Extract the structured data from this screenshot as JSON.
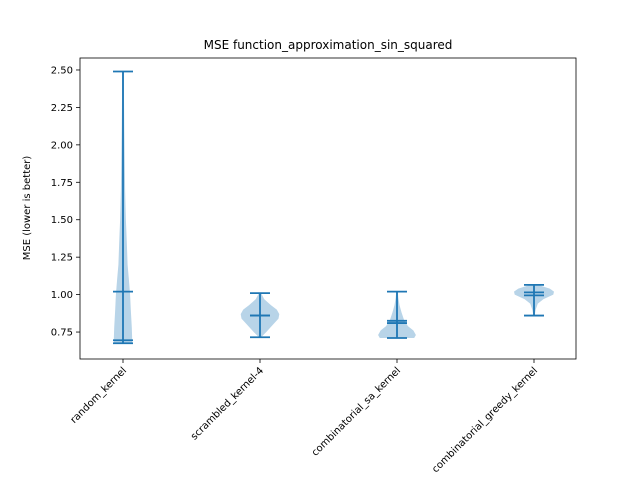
{
  "chart_data": {
    "type": "violin",
    "title": "MSE function_approximation_sin_squared",
    "ylabel": "MSE (lower is better)",
    "xlabel": "",
    "ylim": [
      0.57,
      2.58
    ],
    "yticks": [
      0.75,
      1.0,
      1.25,
      1.5,
      1.75,
      2.0,
      2.25,
      2.5
    ],
    "ytick_labels": [
      "0.75",
      "1.00",
      "1.25",
      "1.50",
      "1.75",
      "2.00",
      "2.25",
      "2.50"
    ],
    "categories": [
      "random_kernel",
      "scrambled_kernel-4",
      "combinatorial_sa_kernel",
      "combinatorial_greedy_kernel"
    ],
    "series": [
      {
        "min": 0.675,
        "max": 2.49,
        "mean": 1.02,
        "median": 0.695,
        "density": [
          [
            0.675,
            0.44
          ],
          [
            0.7,
            0.44
          ],
          [
            0.78,
            0.42
          ],
          [
            0.9,
            0.37
          ],
          [
            1.0,
            0.34
          ],
          [
            1.1,
            0.28
          ],
          [
            1.2,
            0.22
          ],
          [
            1.35,
            0.18
          ],
          [
            1.5,
            0.14
          ],
          [
            1.7,
            0.1
          ],
          [
            1.9,
            0.08
          ],
          [
            2.1,
            0.06
          ],
          [
            2.3,
            0.05
          ],
          [
            2.49,
            0.05
          ]
        ]
      },
      {
        "min": 0.715,
        "max": 1.01,
        "mean": 0.86,
        "median": 0.86,
        "density": [
          [
            0.715,
            0.05
          ],
          [
            0.75,
            0.3
          ],
          [
            0.8,
            0.62
          ],
          [
            0.84,
            0.88
          ],
          [
            0.87,
            0.92
          ],
          [
            0.9,
            0.8
          ],
          [
            0.93,
            0.52
          ],
          [
            0.97,
            0.2
          ],
          [
            1.01,
            0.05
          ]
        ]
      },
      {
        "min": 0.71,
        "max": 1.02,
        "mean": 0.825,
        "median": 0.81,
        "density": [
          [
            0.71,
            0.82
          ],
          [
            0.73,
            0.9
          ],
          [
            0.76,
            0.78
          ],
          [
            0.79,
            0.52
          ],
          [
            0.83,
            0.34
          ],
          [
            0.88,
            0.22
          ],
          [
            0.93,
            0.12
          ],
          [
            0.98,
            0.06
          ],
          [
            1.02,
            0.04
          ]
        ]
      },
      {
        "min": 0.86,
        "max": 1.065,
        "mean": 1.015,
        "median": 0.995,
        "density": [
          [
            0.86,
            0.03
          ],
          [
            0.9,
            0.08
          ],
          [
            0.94,
            0.18
          ],
          [
            0.97,
            0.45
          ],
          [
            1.0,
            0.92
          ],
          [
            1.02,
            0.95
          ],
          [
            1.04,
            0.75
          ],
          [
            1.06,
            0.3
          ],
          [
            1.065,
            0.12
          ]
        ]
      }
    ],
    "colors": {
      "body": "#b8d4e8",
      "line": "#1f77b4"
    }
  }
}
